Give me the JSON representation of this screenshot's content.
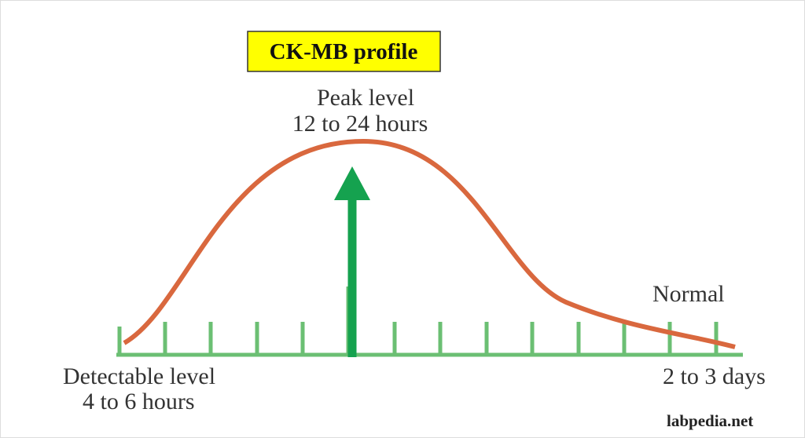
{
  "title": "CK-MB profile",
  "peak": {
    "label": "Peak level",
    "time": "12 to 24 hours"
  },
  "start": {
    "label": "Detectable level",
    "time": "4 to 6 hours"
  },
  "end": {
    "label": "Normal",
    "time": "2 to 3 days"
  },
  "watermark": "labpedia.net"
}
